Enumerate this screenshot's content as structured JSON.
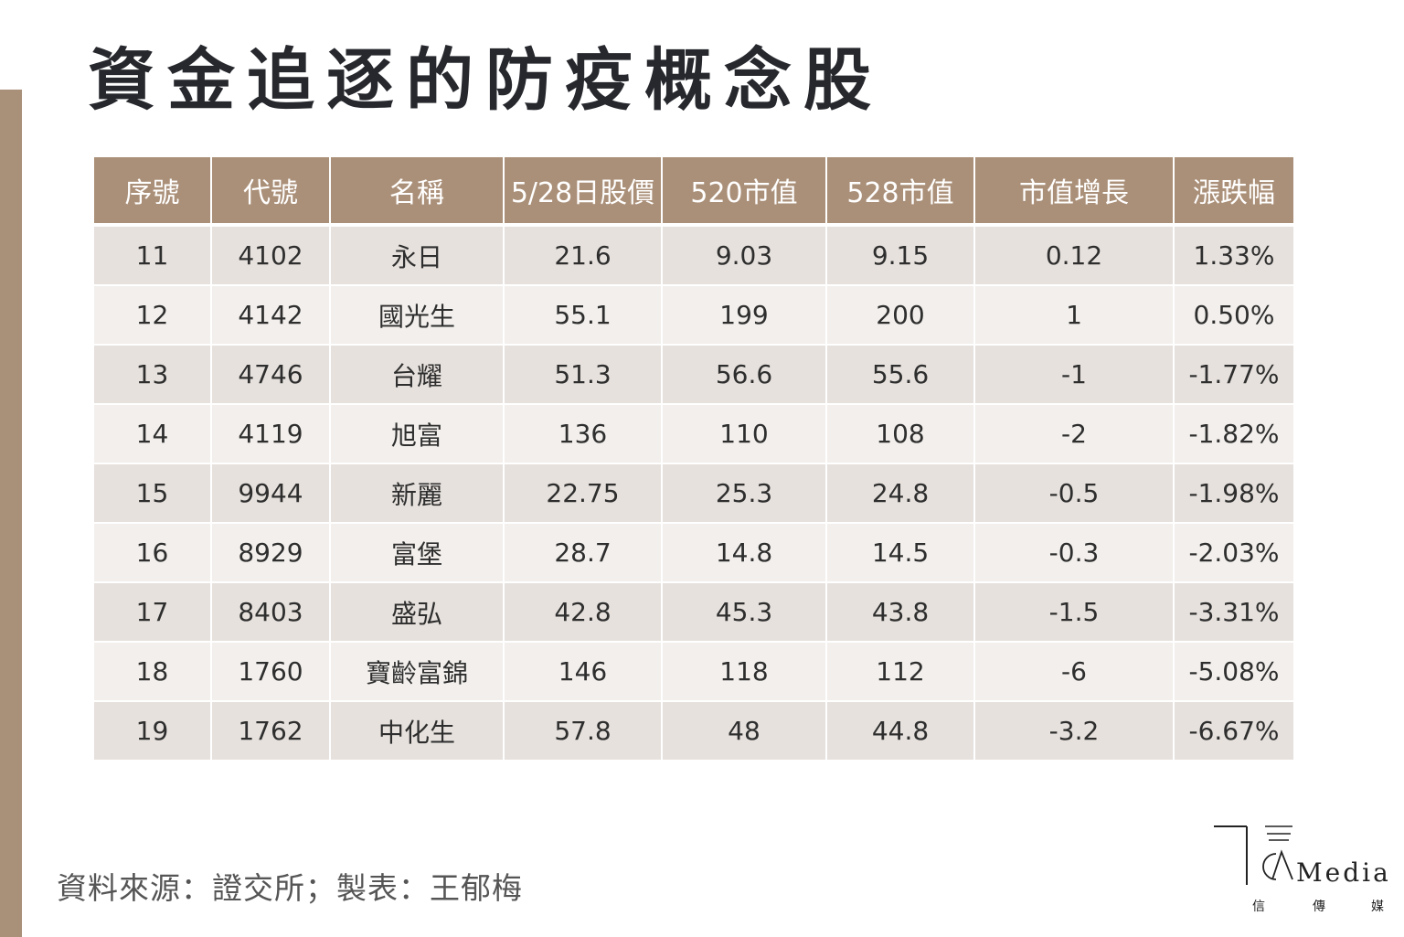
{
  "page": {
    "title": "資金追逐的防疫概念股",
    "source_note": "資料來源：證交所；製表：王郁梅"
  },
  "table": {
    "columns": [
      "序號",
      "代號",
      "名稱",
      "5/28日股價",
      "520市值",
      "528市值",
      "市值增長",
      "漲跌幅"
    ],
    "rows": [
      [
        "11",
        "4102",
        "永日",
        "21.6",
        "9.03",
        "9.15",
        "0.12",
        "1.33%"
      ],
      [
        "12",
        "4142",
        "國光生",
        "55.1",
        "199",
        "200",
        "1",
        "0.50%"
      ],
      [
        "13",
        "4746",
        "台耀",
        "51.3",
        "56.6",
        "55.6",
        "-1",
        "-1.77%"
      ],
      [
        "14",
        "4119",
        "旭富",
        "136",
        "110",
        "108",
        "-2",
        "-1.82%"
      ],
      [
        "15",
        "9944",
        "新麗",
        "22.75",
        "25.3",
        "24.8",
        "-0.5",
        "-1.98%"
      ],
      [
        "16",
        "8929",
        "富堡",
        "28.7",
        "14.8",
        "14.5",
        "-0.3",
        "-2.03%"
      ],
      [
        "17",
        "8403",
        "盛弘",
        "42.8",
        "45.3",
        "43.8",
        "-1.5",
        "-3.31%"
      ],
      [
        "18",
        "1760",
        "寶齡富錦",
        "146",
        "118",
        "112",
        "-6",
        "-5.08%"
      ],
      [
        "19",
        "1762",
        "中化生",
        "57.8",
        "48",
        "44.8",
        "-3.2",
        "-6.67%"
      ]
    ]
  },
  "logo": {
    "word": "Media",
    "chars": [
      "信",
      "傳",
      "媒"
    ]
  },
  "colors": {
    "header_bg": "#ab9079",
    "side_bar": "#a99079",
    "row_odd": "#e6e1dd",
    "row_even": "#f2efec",
    "title_text": "#26282d"
  }
}
